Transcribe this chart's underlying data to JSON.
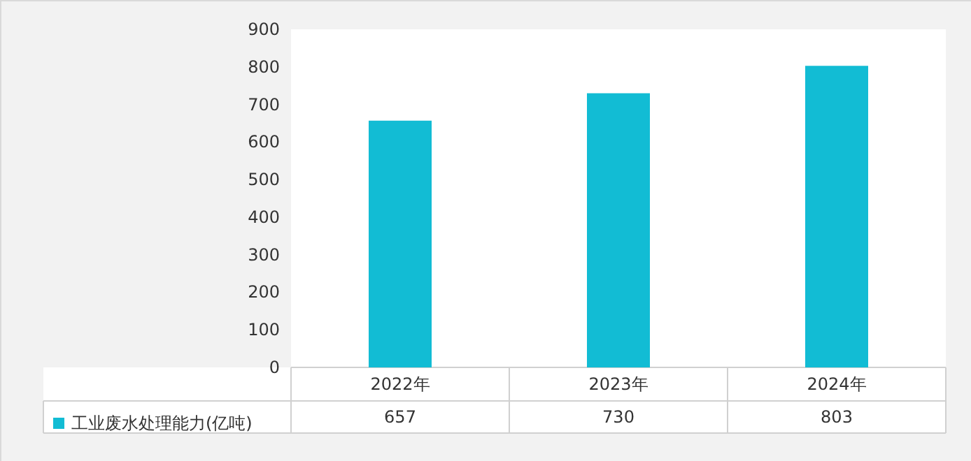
{
  "chart_data": {
    "type": "bar",
    "categories": [
      "2022年",
      "2023年",
      "2024年"
    ],
    "series": [
      {
        "name": "工业废水处理能力(亿吨)",
        "color": "#12bcd4",
        "values": [
          657,
          730,
          803
        ]
      }
    ],
    "ylim": [
      0,
      900
    ],
    "yticks": [
      0,
      100,
      200,
      300,
      400,
      500,
      600,
      700,
      800,
      900
    ],
    "grid": false,
    "legend": "bottom left",
    "data_labels": true
  }
}
